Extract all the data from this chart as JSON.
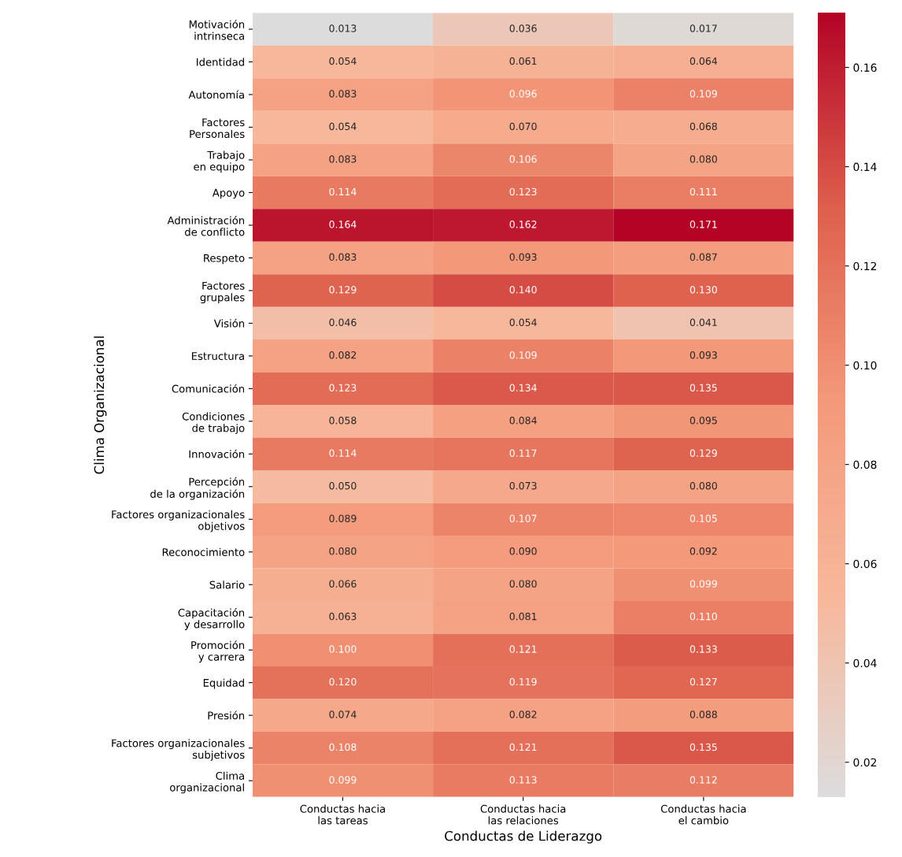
{
  "chart_data": {
    "type": "heatmap",
    "xlabel": "Conductas de Liderazgo",
    "ylabel": "Clima Organizacional",
    "categories": [
      "Conductas hacia\nlas tareas",
      "Conductas hacia\nlas relaciones",
      "Conductas hacia\nel cambio"
    ],
    "y_categories": [
      "Motivación\nintrinseca",
      "Identidad",
      "Autonomía",
      "Factores\nPersonales",
      "Trabajo\nen equipo",
      "Apoyo",
      "Administración\nde conflicto",
      "Respeto",
      "Factores\ngrupales",
      "Visión",
      "Estructura",
      "Comunicación",
      "Condiciones\nde trabajo",
      "Innovación",
      "Percepción\nde la organización",
      "Factores organizacionales\nobjetivos",
      "Reconocimiento",
      "Salario",
      "Capacitación\ny desarrollo",
      "Promoción\ny carrera",
      "Equidad",
      "Presión",
      "Factores organizacionales\nsubjetivos",
      "Clima\norganizacional"
    ],
    "cells": [
      [
        0.013,
        0.036,
        0.017
      ],
      [
        0.054,
        0.061,
        0.064
      ],
      [
        0.083,
        0.096,
        0.109
      ],
      [
        0.054,
        0.07,
        0.068
      ],
      [
        0.083,
        0.106,
        0.08
      ],
      [
        0.114,
        0.123,
        0.111
      ],
      [
        0.164,
        0.162,
        0.171
      ],
      [
        0.083,
        0.093,
        0.087
      ],
      [
        0.129,
        0.14,
        0.13
      ],
      [
        0.046,
        0.054,
        0.041
      ],
      [
        0.082,
        0.109,
        0.093
      ],
      [
        0.123,
        0.134,
        0.135
      ],
      [
        0.058,
        0.084,
        0.095
      ],
      [
        0.114,
        0.117,
        0.129
      ],
      [
        0.05,
        0.073,
        0.08
      ],
      [
        0.089,
        0.107,
        0.105
      ],
      [
        0.08,
        0.09,
        0.092
      ],
      [
        0.066,
        0.08,
        0.099
      ],
      [
        0.063,
        0.081,
        0.11
      ],
      [
        0.1,
        0.121,
        0.133
      ],
      [
        0.12,
        0.119,
        0.127
      ],
      [
        0.074,
        0.082,
        0.088
      ],
      [
        0.108,
        0.121,
        0.135
      ],
      [
        0.099,
        0.113,
        0.112
      ]
    ],
    "cell_labels": [
      [
        "0.013",
        "0.036",
        "0.017"
      ],
      [
        "0.054",
        "0.061",
        "0.064"
      ],
      [
        "0.083",
        "0.096",
        "0.109"
      ],
      [
        "0.054",
        "0.070",
        "0.068"
      ],
      [
        "0.083",
        "0.106",
        "0.080"
      ],
      [
        "0.114",
        "0.123",
        "0.111"
      ],
      [
        "0.164",
        "0.162",
        "0.171"
      ],
      [
        "0.083",
        "0.093",
        "0.087"
      ],
      [
        "0.129",
        "0.140",
        "0.130"
      ],
      [
        "0.046",
        "0.054",
        "0.041"
      ],
      [
        "0.082",
        "0.109",
        "0.093"
      ],
      [
        "0.123",
        "0.134",
        "0.135"
      ],
      [
        "0.058",
        "0.084",
        "0.095"
      ],
      [
        "0.114",
        "0.117",
        "0.129"
      ],
      [
        "0.050",
        "0.073",
        "0.080"
      ],
      [
        "0.089",
        "0.107",
        "0.105"
      ],
      [
        "0.080",
        "0.090",
        "0.092"
      ],
      [
        "0.066",
        "0.080",
        "0.099"
      ],
      [
        "0.063",
        "0.081",
        "0.110"
      ],
      [
        "0.100",
        "0.121",
        "0.133"
      ],
      [
        "0.120",
        "0.119",
        "0.127"
      ],
      [
        "0.074",
        "0.082",
        "0.088"
      ],
      [
        "0.108",
        "0.121",
        "0.135"
      ],
      [
        "0.099",
        "0.113",
        "0.112"
      ]
    ],
    "colors": [
      "#dddcdc",
      "#f7b89c",
      "#f49a7b",
      "#de604d",
      "#b40426"
    ],
    "clim": [
      0.013,
      0.171
    ],
    "cticks": [
      0.02,
      0.04,
      0.06,
      0.08,
      {
        "value": 0.1,
        "label": "0.10"
      },
      0.12,
      0.14,
      0.16
    ]
  }
}
